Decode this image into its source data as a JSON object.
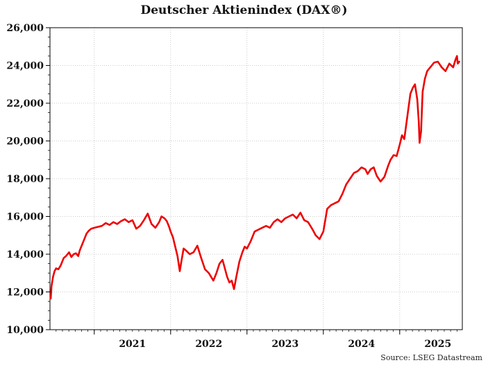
{
  "chart_data": {
    "type": "line",
    "title": "Deutscher Aktienindex (DAX®)",
    "source": "Source: LSEG Datastream",
    "xlabel": "",
    "ylabel": "",
    "xlim": [
      2020.42,
      2025.82
    ],
    "ylim": [
      10000,
      26000
    ],
    "yticks": [
      10000,
      12000,
      14000,
      16000,
      18000,
      20000,
      22000,
      24000,
      26000
    ],
    "ytick_labels": [
      "10,000",
      "12,000",
      "14,000",
      "16,000",
      "18,000",
      "20,000",
      "22,000",
      "24,000",
      "26,000"
    ],
    "xtick_boundaries": [
      2021,
      2022,
      2023,
      2024,
      2025
    ],
    "xtick_labels": [
      {
        "label": "2021",
        "x": 2021.5
      },
      {
        "label": "2022",
        "x": 2022.5
      },
      {
        "label": "2023",
        "x": 2023.5
      },
      {
        "label": "2024",
        "x": 2024.5
      },
      {
        "label": "2025",
        "x": 2025.5
      }
    ],
    "grid": true,
    "colors": {
      "line": "#ee0000",
      "grid": "#bbbbbb",
      "axis": "#000000"
    },
    "series": [
      {
        "name": "",
        "x": [
          2020.43,
          2020.44,
          2020.46,
          2020.48,
          2020.5,
          2020.53,
          2020.56,
          2020.6,
          2020.63,
          2020.67,
          2020.7,
          2020.73,
          2020.76,
          2020.79,
          2020.81,
          2020.84,
          2020.87,
          2020.9,
          2020.93,
          2020.96,
          2021.0,
          2021.05,
          2021.1,
          2021.15,
          2021.2,
          2021.25,
          2021.3,
          2021.35,
          2021.4,
          2021.45,
          2021.5,
          2021.55,
          2021.6,
          2021.65,
          2021.7,
          2021.75,
          2021.8,
          2021.85,
          2021.88,
          2021.92,
          2021.95,
          2021.98,
          2022.0,
          2022.03,
          2022.06,
          2022.09,
          2022.12,
          2022.14,
          2022.17,
          2022.2,
          2022.25,
          2022.3,
          2022.35,
          2022.4,
          2022.45,
          2022.5,
          2022.53,
          2022.56,
          2022.6,
          2022.64,
          2022.68,
          2022.71,
          2022.74,
          2022.77,
          2022.8,
          2022.83,
          2022.86,
          2022.9,
          2022.94,
          2022.97,
          2023.0,
          2023.05,
          2023.1,
          2023.15,
          2023.2,
          2023.25,
          2023.3,
          2023.35,
          2023.4,
          2023.45,
          2023.5,
          2023.55,
          2023.6,
          2023.65,
          2023.7,
          2023.75,
          2023.8,
          2023.83,
          2023.86,
          2023.9,
          2023.95,
          2024.0,
          2024.05,
          2024.1,
          2024.15,
          2024.2,
          2024.25,
          2024.3,
          2024.35,
          2024.4,
          2024.45,
          2024.5,
          2024.55,
          2024.58,
          2024.62,
          2024.66,
          2024.7,
          2024.75,
          2024.8,
          2024.85,
          2024.88,
          2024.92,
          2024.96,
          2025.0,
          2025.03,
          2025.06,
          2025.1,
          2025.14,
          2025.17,
          2025.2,
          2025.23,
          2025.25,
          2025.26,
          2025.28,
          2025.3,
          2025.33,
          2025.36,
          2025.4,
          2025.45,
          2025.5,
          2025.55,
          2025.6,
          2025.65,
          2025.7,
          2025.73,
          2025.75,
          2025.76,
          2025.78
        ],
        "y": [
          11650,
          12300,
          12800,
          13100,
          13250,
          13200,
          13400,
          13800,
          13900,
          14100,
          13850,
          14000,
          14050,
          13900,
          14200,
          14500,
          14800,
          15100,
          15250,
          15350,
          15400,
          15450,
          15500,
          15650,
          15550,
          15700,
          15600,
          15750,
          15850,
          15700,
          15800,
          15350,
          15500,
          15800,
          16150,
          15600,
          15400,
          15700,
          16000,
          15900,
          15750,
          15450,
          15200,
          14900,
          14400,
          13900,
          13100,
          13600,
          14300,
          14200,
          14000,
          14100,
          14450,
          13800,
          13200,
          13000,
          12800,
          12600,
          13000,
          13500,
          13700,
          13250,
          12800,
          12500,
          12600,
          12150,
          12800,
          13600,
          14100,
          14400,
          14300,
          14700,
          15200,
          15300,
          15400,
          15500,
          15400,
          15700,
          15850,
          15700,
          15900,
          16000,
          16100,
          15900,
          16200,
          15800,
          15700,
          15500,
          15300,
          15000,
          14800,
          15200,
          16400,
          16600,
          16700,
          16800,
          17200,
          17700,
          18000,
          18300,
          18400,
          18600,
          18500,
          18250,
          18500,
          18600,
          18150,
          17850,
          18100,
          18700,
          19000,
          19250,
          19200,
          19800,
          20300,
          20100,
          21300,
          22500,
          22800,
          23000,
          22200,
          21000,
          19900,
          20500,
          22600,
          23300,
          23700,
          23900,
          24150,
          24200,
          23900,
          23700,
          24100,
          23900,
          24300,
          24500,
          24100,
          24200
        ]
      }
    ]
  }
}
